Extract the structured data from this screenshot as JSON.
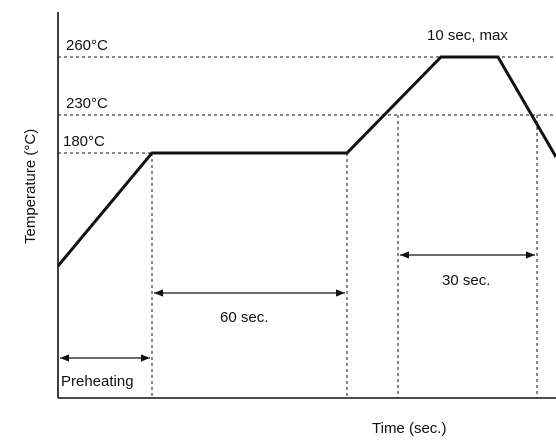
{
  "axes": {
    "ylabel": "Temperature (°C)",
    "xlabel": "Time (sec.)"
  },
  "temperature_levels": {
    "t260": "260°C",
    "t230": "230°C",
    "t180": "180°C"
  },
  "annotations": {
    "peak": "10 sec, max",
    "soak": "60 sec.",
    "above_230": "30 sec.",
    "preheat": "Preheating"
  }
}
